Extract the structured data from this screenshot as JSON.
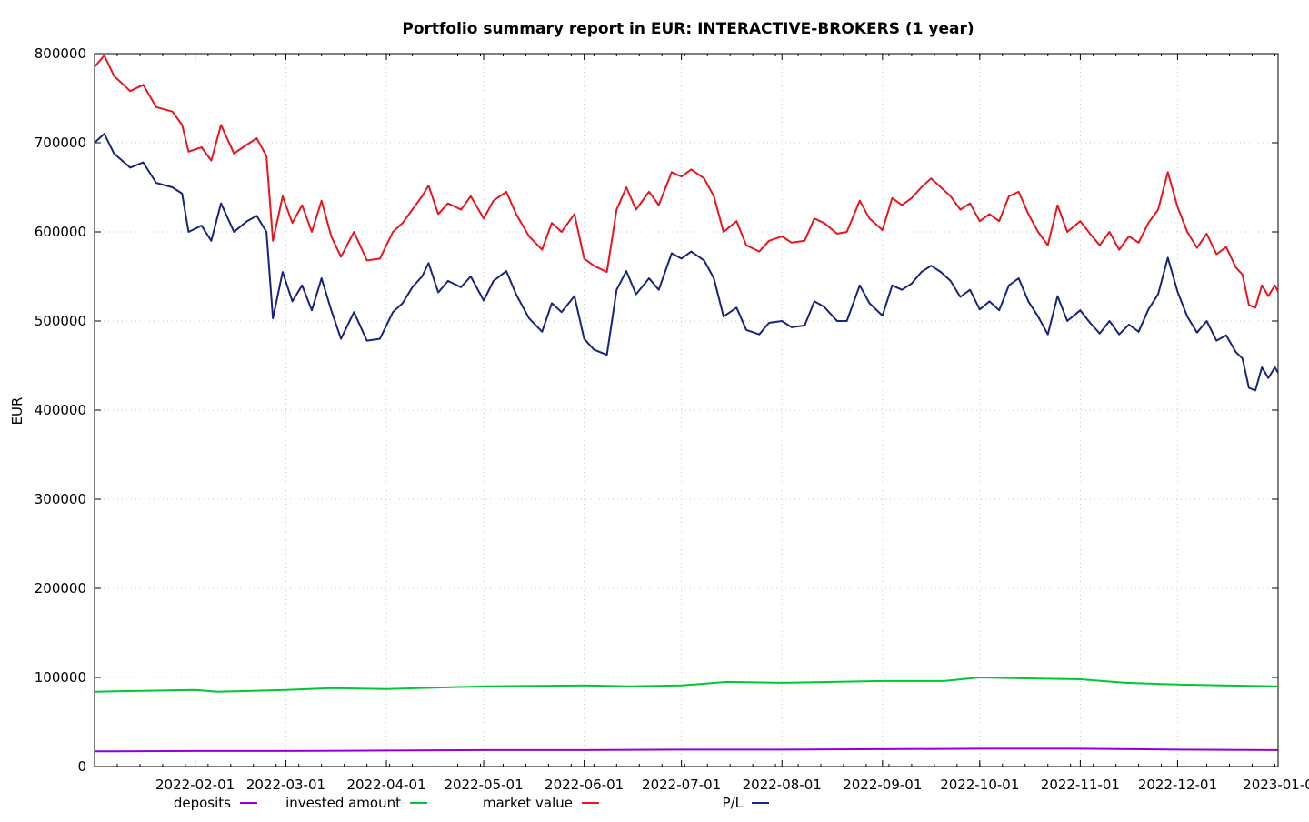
{
  "chart_data": {
    "type": "line",
    "title": "Portfolio summary report in EUR: INTERACTIVE-BROKERS (1 year)",
    "xlabel": "",
    "ylabel": "EUR",
    "x_start": "2022-01-01",
    "x_end": "2023-01-01",
    "ylim": [
      0,
      800000
    ],
    "y_ticks": [
      "0",
      "100000",
      "200000",
      "300000",
      "400000",
      "500000",
      "600000",
      "700000",
      "800000"
    ],
    "x_ticks": [
      "2022-02-01",
      "2022-03-01",
      "2022-04-01",
      "2022-05-01",
      "2022-06-01",
      "2022-07-01",
      "2022-08-01",
      "2022-09-01",
      "2022-10-01",
      "2022-11-01",
      "2022-12-01",
      "2023-01-0"
    ],
    "grid": true,
    "legend_position": "bottom",
    "series": [
      {
        "name": "deposits",
        "color": "#9400d3",
        "points": [
          [
            "2022-01-01",
            17000
          ],
          [
            "2022-02-01",
            17500
          ],
          [
            "2022-03-01",
            17500
          ],
          [
            "2022-04-01",
            18000
          ],
          [
            "2022-05-01",
            18500
          ],
          [
            "2022-06-01",
            18500
          ],
          [
            "2022-07-01",
            19000
          ],
          [
            "2022-08-01",
            19000
          ],
          [
            "2022-09-01",
            19500
          ],
          [
            "2022-10-01",
            20000
          ],
          [
            "2022-11-01",
            20000
          ],
          [
            "2022-12-01",
            19000
          ],
          [
            "2023-01-01",
            18500
          ]
        ]
      },
      {
        "name": "invested amount",
        "color": "#00c832",
        "points": [
          [
            "2022-01-01",
            84000
          ],
          [
            "2022-02-01",
            86000
          ],
          [
            "2022-02-08",
            84000
          ],
          [
            "2022-03-01",
            86000
          ],
          [
            "2022-03-15",
            88000
          ],
          [
            "2022-04-01",
            87000
          ],
          [
            "2022-05-01",
            90000
          ],
          [
            "2022-06-01",
            91000
          ],
          [
            "2022-06-15",
            90000
          ],
          [
            "2022-07-01",
            91000
          ],
          [
            "2022-07-15",
            95000
          ],
          [
            "2022-08-01",
            94000
          ],
          [
            "2022-09-01",
            96000
          ],
          [
            "2022-09-20",
            96000
          ],
          [
            "2022-10-01",
            100000
          ],
          [
            "2022-10-15",
            99000
          ],
          [
            "2022-11-01",
            98000
          ],
          [
            "2022-11-15",
            94000
          ],
          [
            "2022-12-01",
            92000
          ],
          [
            "2022-12-15",
            91000
          ],
          [
            "2023-01-01",
            90000
          ]
        ]
      },
      {
        "name": "market value",
        "color": "#e8151c",
        "points": [
          [
            "2022-01-01",
            785000
          ],
          [
            "2022-01-04",
            798000
          ],
          [
            "2022-01-07",
            775000
          ],
          [
            "2022-01-12",
            758000
          ],
          [
            "2022-01-16",
            765000
          ],
          [
            "2022-01-20",
            740000
          ],
          [
            "2022-01-25",
            735000
          ],
          [
            "2022-01-28",
            720000
          ],
          [
            "2022-01-30",
            690000
          ],
          [
            "2022-02-03",
            695000
          ],
          [
            "2022-02-06",
            680000
          ],
          [
            "2022-02-09",
            720000
          ],
          [
            "2022-02-13",
            688000
          ],
          [
            "2022-02-17",
            698000
          ],
          [
            "2022-02-20",
            705000
          ],
          [
            "2022-02-23",
            685000
          ],
          [
            "2022-02-25",
            590000
          ],
          [
            "2022-02-28",
            640000
          ],
          [
            "2022-03-03",
            610000
          ],
          [
            "2022-03-06",
            630000
          ],
          [
            "2022-03-09",
            600000
          ],
          [
            "2022-03-12",
            635000
          ],
          [
            "2022-03-15",
            595000
          ],
          [
            "2022-03-18",
            572000
          ],
          [
            "2022-03-22",
            600000
          ],
          [
            "2022-03-26",
            568000
          ],
          [
            "2022-03-30",
            570000
          ],
          [
            "2022-04-03",
            600000
          ],
          [
            "2022-04-06",
            610000
          ],
          [
            "2022-04-09",
            625000
          ],
          [
            "2022-04-12",
            640000
          ],
          [
            "2022-04-14",
            652000
          ],
          [
            "2022-04-17",
            620000
          ],
          [
            "2022-04-20",
            632000
          ],
          [
            "2022-04-24",
            625000
          ],
          [
            "2022-04-27",
            640000
          ],
          [
            "2022-05-01",
            615000
          ],
          [
            "2022-05-04",
            635000
          ],
          [
            "2022-05-08",
            645000
          ],
          [
            "2022-05-11",
            620000
          ],
          [
            "2022-05-15",
            595000
          ],
          [
            "2022-05-19",
            580000
          ],
          [
            "2022-05-22",
            610000
          ],
          [
            "2022-05-25",
            600000
          ],
          [
            "2022-05-29",
            620000
          ],
          [
            "2022-06-01",
            570000
          ],
          [
            "2022-06-04",
            562000
          ],
          [
            "2022-06-08",
            555000
          ],
          [
            "2022-06-11",
            625000
          ],
          [
            "2022-06-14",
            650000
          ],
          [
            "2022-06-17",
            625000
          ],
          [
            "2022-06-21",
            645000
          ],
          [
            "2022-06-24",
            630000
          ],
          [
            "2022-06-28",
            667000
          ],
          [
            "2022-07-01",
            662000
          ],
          [
            "2022-07-04",
            670000
          ],
          [
            "2022-07-08",
            660000
          ],
          [
            "2022-07-11",
            640000
          ],
          [
            "2022-07-14",
            600000
          ],
          [
            "2022-07-18",
            612000
          ],
          [
            "2022-07-21",
            585000
          ],
          [
            "2022-07-25",
            578000
          ],
          [
            "2022-07-28",
            590000
          ],
          [
            "2022-08-01",
            595000
          ],
          [
            "2022-08-04",
            588000
          ],
          [
            "2022-08-08",
            590000
          ],
          [
            "2022-08-11",
            615000
          ],
          [
            "2022-08-14",
            610000
          ],
          [
            "2022-08-18",
            598000
          ],
          [
            "2022-08-21",
            600000
          ],
          [
            "2022-08-25",
            635000
          ],
          [
            "2022-08-28",
            615000
          ],
          [
            "2022-09-01",
            602000
          ],
          [
            "2022-09-04",
            638000
          ],
          [
            "2022-09-07",
            630000
          ],
          [
            "2022-09-10",
            638000
          ],
          [
            "2022-09-13",
            650000
          ],
          [
            "2022-09-16",
            660000
          ],
          [
            "2022-09-19",
            650000
          ],
          [
            "2022-09-22",
            640000
          ],
          [
            "2022-09-25",
            625000
          ],
          [
            "2022-09-28",
            632000
          ],
          [
            "2022-10-01",
            612000
          ],
          [
            "2022-10-04",
            620000
          ],
          [
            "2022-10-07",
            612000
          ],
          [
            "2022-10-10",
            640000
          ],
          [
            "2022-10-13",
            645000
          ],
          [
            "2022-10-16",
            620000
          ],
          [
            "2022-10-19",
            600000
          ],
          [
            "2022-10-22",
            585000
          ],
          [
            "2022-10-25",
            630000
          ],
          [
            "2022-10-28",
            600000
          ],
          [
            "2022-11-01",
            612000
          ],
          [
            "2022-11-04",
            598000
          ],
          [
            "2022-11-07",
            585000
          ],
          [
            "2022-11-10",
            600000
          ],
          [
            "2022-11-13",
            580000
          ],
          [
            "2022-11-16",
            595000
          ],
          [
            "2022-11-19",
            588000
          ],
          [
            "2022-11-22",
            610000
          ],
          [
            "2022-11-25",
            625000
          ],
          [
            "2022-11-28",
            667000
          ],
          [
            "2022-12-01",
            628000
          ],
          [
            "2022-12-04",
            600000
          ],
          [
            "2022-12-07",
            582000
          ],
          [
            "2022-12-10",
            598000
          ],
          [
            "2022-12-13",
            575000
          ],
          [
            "2022-12-16",
            583000
          ],
          [
            "2022-12-19",
            560000
          ],
          [
            "2022-12-21",
            552000
          ],
          [
            "2022-12-23",
            518000
          ],
          [
            "2022-12-25",
            515000
          ],
          [
            "2022-12-27",
            540000
          ],
          [
            "2022-12-29",
            528000
          ],
          [
            "2022-12-31",
            540000
          ],
          [
            "2023-01-01",
            533000
          ]
        ]
      },
      {
        "name": "P/L",
        "color": "#1a237e",
        "points": [
          [
            "2022-01-01",
            700000
          ],
          [
            "2022-01-04",
            710000
          ],
          [
            "2022-01-07",
            688000
          ],
          [
            "2022-01-12",
            672000
          ],
          [
            "2022-01-16",
            678000
          ],
          [
            "2022-01-20",
            655000
          ],
          [
            "2022-01-25",
            650000
          ],
          [
            "2022-01-28",
            643000
          ],
          [
            "2022-01-30",
            600000
          ],
          [
            "2022-02-03",
            607000
          ],
          [
            "2022-02-06",
            590000
          ],
          [
            "2022-02-09",
            632000
          ],
          [
            "2022-02-13",
            600000
          ],
          [
            "2022-02-17",
            612000
          ],
          [
            "2022-02-20",
            618000
          ],
          [
            "2022-02-23",
            600000
          ],
          [
            "2022-02-25",
            503000
          ],
          [
            "2022-02-28",
            555000
          ],
          [
            "2022-03-03",
            522000
          ],
          [
            "2022-03-06",
            540000
          ],
          [
            "2022-03-09",
            512000
          ],
          [
            "2022-03-12",
            548000
          ],
          [
            "2022-03-15",
            512000
          ],
          [
            "2022-03-18",
            480000
          ],
          [
            "2022-03-22",
            510000
          ],
          [
            "2022-03-26",
            478000
          ],
          [
            "2022-03-30",
            480000
          ],
          [
            "2022-04-03",
            510000
          ],
          [
            "2022-04-06",
            520000
          ],
          [
            "2022-04-09",
            538000
          ],
          [
            "2022-04-12",
            550000
          ],
          [
            "2022-04-14",
            565000
          ],
          [
            "2022-04-17",
            532000
          ],
          [
            "2022-04-20",
            545000
          ],
          [
            "2022-04-24",
            538000
          ],
          [
            "2022-04-27",
            550000
          ],
          [
            "2022-05-01",
            523000
          ],
          [
            "2022-05-04",
            545000
          ],
          [
            "2022-05-08",
            556000
          ],
          [
            "2022-05-11",
            530000
          ],
          [
            "2022-05-15",
            503000
          ],
          [
            "2022-05-19",
            488000
          ],
          [
            "2022-05-22",
            520000
          ],
          [
            "2022-05-25",
            510000
          ],
          [
            "2022-05-29",
            528000
          ],
          [
            "2022-06-01",
            480000
          ],
          [
            "2022-06-04",
            468000
          ],
          [
            "2022-06-08",
            462000
          ],
          [
            "2022-06-11",
            535000
          ],
          [
            "2022-06-14",
            556000
          ],
          [
            "2022-06-17",
            530000
          ],
          [
            "2022-06-21",
            548000
          ],
          [
            "2022-06-24",
            535000
          ],
          [
            "2022-06-28",
            576000
          ],
          [
            "2022-07-01",
            570000
          ],
          [
            "2022-07-04",
            578000
          ],
          [
            "2022-07-08",
            568000
          ],
          [
            "2022-07-11",
            548000
          ],
          [
            "2022-07-14",
            505000
          ],
          [
            "2022-07-18",
            515000
          ],
          [
            "2022-07-21",
            490000
          ],
          [
            "2022-07-25",
            485000
          ],
          [
            "2022-07-28",
            498000
          ],
          [
            "2022-08-01",
            500000
          ],
          [
            "2022-08-04",
            493000
          ],
          [
            "2022-08-08",
            495000
          ],
          [
            "2022-08-11",
            522000
          ],
          [
            "2022-08-14",
            516000
          ],
          [
            "2022-08-18",
            500000
          ],
          [
            "2022-08-21",
            500000
          ],
          [
            "2022-08-25",
            540000
          ],
          [
            "2022-08-28",
            520000
          ],
          [
            "2022-09-01",
            506000
          ],
          [
            "2022-09-04",
            540000
          ],
          [
            "2022-09-07",
            535000
          ],
          [
            "2022-09-10",
            542000
          ],
          [
            "2022-09-13",
            555000
          ],
          [
            "2022-09-16",
            562000
          ],
          [
            "2022-09-19",
            555000
          ],
          [
            "2022-09-22",
            545000
          ],
          [
            "2022-09-25",
            527000
          ],
          [
            "2022-09-28",
            535000
          ],
          [
            "2022-10-01",
            513000
          ],
          [
            "2022-10-04",
            522000
          ],
          [
            "2022-10-07",
            512000
          ],
          [
            "2022-10-10",
            540000
          ],
          [
            "2022-10-13",
            548000
          ],
          [
            "2022-10-16",
            522000
          ],
          [
            "2022-10-19",
            505000
          ],
          [
            "2022-10-22",
            485000
          ],
          [
            "2022-10-25",
            528000
          ],
          [
            "2022-10-28",
            500000
          ],
          [
            "2022-11-01",
            512000
          ],
          [
            "2022-11-04",
            498000
          ],
          [
            "2022-11-07",
            486000
          ],
          [
            "2022-11-10",
            500000
          ],
          [
            "2022-11-13",
            485000
          ],
          [
            "2022-11-16",
            496000
          ],
          [
            "2022-11-19",
            488000
          ],
          [
            "2022-11-22",
            513000
          ],
          [
            "2022-11-25",
            530000
          ],
          [
            "2022-11-28",
            571000
          ],
          [
            "2022-12-01",
            533000
          ],
          [
            "2022-12-04",
            505000
          ],
          [
            "2022-12-07",
            487000
          ],
          [
            "2022-12-10",
            500000
          ],
          [
            "2022-12-13",
            478000
          ],
          [
            "2022-12-16",
            484000
          ],
          [
            "2022-12-19",
            465000
          ],
          [
            "2022-12-21",
            458000
          ],
          [
            "2022-12-23",
            425000
          ],
          [
            "2022-12-25",
            422000
          ],
          [
            "2022-12-27",
            448000
          ],
          [
            "2022-12-29",
            436000
          ],
          [
            "2022-12-31",
            448000
          ],
          [
            "2023-01-01",
            442000
          ]
        ]
      }
    ]
  }
}
